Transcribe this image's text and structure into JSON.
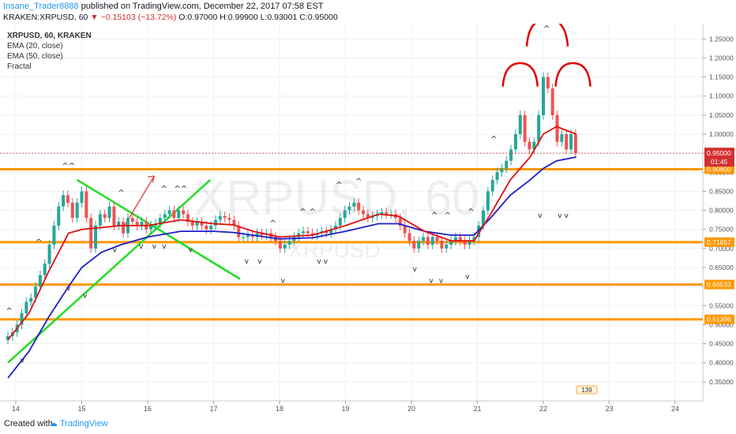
{
  "header": {
    "author": "Insane_Trader8888",
    "published": "published on TradingView.com, December 22, 2017 07:58 EST",
    "symbol": "KRAKEN:XRPUSD, 60",
    "change": "−0.15103 (−13.72%)",
    "ohlc": "O:0.97000 H:0.99900 L:0.93001 C:0.95000"
  },
  "legend": [
    "XRPUSD, 60, KRAKEN",
    "EMA (20, close)",
    "EMA (50, close)",
    "Fractal"
  ],
  "watermark": {
    "main": "XRPUSD, 60",
    "sub": "XRPUSD"
  },
  "price_tag": {
    "price": "0.95000",
    "countdown": "01:45",
    "color": "#d32f2f"
  },
  "levels": [
    {
      "value": 0.908,
      "label": "0.90800"
    },
    {
      "value": 0.71657,
      "label": "0.71657"
    },
    {
      "value": 0.60533,
      "label": "0.60533"
    },
    {
      "value": 0.51396,
      "label": "0.51396"
    }
  ],
  "badge": "139",
  "footer": {
    "created": "Created with",
    "brand": "TradingView"
  },
  "colors": {
    "up": "#26a69a",
    "down": "#ef5350",
    "ema20": "#e01010",
    "ema50": "#1e1ec8",
    "level": "#ff9800",
    "trend": "#22dd22"
  },
  "chart_data": {
    "type": "candlestick",
    "x_ticks": [
      {
        "label": "14",
        "day": 14
      },
      {
        "label": "15",
        "day": 15
      },
      {
        "label": "16",
        "day": 16
      },
      {
        "label": "17",
        "day": 17
      },
      {
        "label": "18",
        "day": 18
      },
      {
        "label": "19",
        "day": 19
      },
      {
        "label": "20",
        "day": 20
      },
      {
        "label": "21",
        "day": 21
      },
      {
        "label": "22",
        "day": 22
      },
      {
        "label": "23",
        "day": 23
      },
      {
        "label": "24",
        "day": 24
      }
    ],
    "y_ticks": [
      "0.35000",
      "0.40000",
      "0.45000",
      "0.50000",
      "0.55000",
      "0.60000",
      "0.65000",
      "0.70000",
      "0.75000",
      "0.80000",
      "0.85000",
      "0.90000",
      "0.95000",
      "1.00000",
      "1.05000",
      "1.10000",
      "1.15000",
      "1.20000",
      "1.25000"
    ],
    "ylim": [
      0.3,
      1.29
    ],
    "candles": [
      [
        13.88,
        0.47
      ],
      [
        13.95,
        0.48
      ],
      [
        14.02,
        0.5
      ],
      [
        14.09,
        0.53
      ],
      [
        14.16,
        0.56
      ],
      [
        14.23,
        0.57
      ],
      [
        14.3,
        0.6
      ],
      [
        14.37,
        0.63
      ],
      [
        14.44,
        0.66
      ],
      [
        14.51,
        0.71
      ],
      [
        14.58,
        0.76
      ],
      [
        14.65,
        0.81
      ],
      [
        14.72,
        0.84
      ],
      [
        14.79,
        0.82
      ],
      [
        14.86,
        0.78
      ],
      [
        14.93,
        0.82
      ],
      [
        15.0,
        0.85
      ],
      [
        15.07,
        0.78
      ],
      [
        15.14,
        0.7
      ],
      [
        15.21,
        0.76
      ],
      [
        15.28,
        0.79
      ],
      [
        15.35,
        0.78
      ],
      [
        15.42,
        0.81
      ],
      [
        15.49,
        0.76
      ],
      [
        15.56,
        0.77
      ],
      [
        15.63,
        0.74
      ],
      [
        15.7,
        0.78
      ],
      [
        15.77,
        0.77
      ],
      [
        15.84,
        0.76
      ],
      [
        15.91,
        0.77
      ],
      [
        15.98,
        0.75
      ],
      [
        16.05,
        0.76
      ],
      [
        16.12,
        0.765
      ],
      [
        16.19,
        0.78
      ],
      [
        16.26,
        0.79
      ],
      [
        16.33,
        0.8
      ],
      [
        16.4,
        0.78
      ],
      [
        16.47,
        0.8
      ],
      [
        16.54,
        0.79
      ],
      [
        16.61,
        0.77
      ],
      [
        16.68,
        0.76
      ],
      [
        16.75,
        0.77
      ],
      [
        16.82,
        0.76
      ],
      [
        16.89,
        0.75
      ],
      [
        16.96,
        0.76
      ],
      [
        17.03,
        0.775
      ],
      [
        17.1,
        0.785
      ],
      [
        17.17,
        0.78
      ],
      [
        17.24,
        0.775
      ],
      [
        17.31,
        0.76
      ],
      [
        17.38,
        0.73
      ],
      [
        17.45,
        0.73
      ],
      [
        17.52,
        0.735
      ],
      [
        17.59,
        0.73
      ],
      [
        17.66,
        0.74
      ],
      [
        17.73,
        0.735
      ],
      [
        17.8,
        0.74
      ],
      [
        17.87,
        0.73
      ],
      [
        17.94,
        0.72
      ],
      [
        18.01,
        0.7
      ],
      [
        18.08,
        0.71
      ],
      [
        18.15,
        0.72
      ],
      [
        18.22,
        0.73
      ],
      [
        18.29,
        0.74
      ],
      [
        18.36,
        0.745
      ],
      [
        18.43,
        0.74
      ],
      [
        18.5,
        0.735
      ],
      [
        18.57,
        0.74
      ],
      [
        18.64,
        0.745
      ],
      [
        18.71,
        0.74
      ],
      [
        18.78,
        0.75
      ],
      [
        18.85,
        0.76
      ],
      [
        18.92,
        0.78
      ],
      [
        18.99,
        0.8
      ],
      [
        19.06,
        0.81
      ],
      [
        19.13,
        0.82
      ],
      [
        19.2,
        0.8
      ],
      [
        19.27,
        0.79
      ],
      [
        19.34,
        0.78
      ],
      [
        19.41,
        0.785
      ],
      [
        19.48,
        0.79
      ],
      [
        19.55,
        0.795
      ],
      [
        19.62,
        0.79
      ],
      [
        19.69,
        0.79
      ],
      [
        19.76,
        0.78
      ],
      [
        19.83,
        0.76
      ],
      [
        19.9,
        0.74
      ],
      [
        19.97,
        0.72
      ],
      [
        20.04,
        0.7
      ],
      [
        20.11,
        0.72
      ],
      [
        20.18,
        0.73
      ],
      [
        20.25,
        0.71
      ],
      [
        20.32,
        0.73
      ],
      [
        20.39,
        0.72
      ],
      [
        20.46,
        0.7
      ],
      [
        20.53,
        0.71
      ],
      [
        20.6,
        0.72
      ],
      [
        20.67,
        0.73
      ],
      [
        20.74,
        0.72
      ],
      [
        20.81,
        0.71
      ],
      [
        20.88,
        0.72
      ],
      [
        20.95,
        0.73
      ],
      [
        21.02,
        0.76
      ],
      [
        21.09,
        0.8
      ],
      [
        21.16,
        0.85
      ],
      [
        21.23,
        0.88
      ],
      [
        21.3,
        0.9
      ],
      [
        21.37,
        0.91
      ],
      [
        21.44,
        0.93
      ],
      [
        21.51,
        0.96
      ],
      [
        21.58,
        1.0
      ],
      [
        21.65,
        1.05
      ],
      [
        21.72,
        0.98
      ],
      [
        21.79,
        0.96
      ],
      [
        21.86,
        0.98
      ],
      [
        21.93,
        1.05
      ],
      [
        22.0,
        1.15
      ],
      [
        22.07,
        1.12
      ],
      [
        22.14,
        1.05
      ],
      [
        22.21,
        0.98
      ],
      [
        22.28,
        1.0
      ],
      [
        22.35,
        0.96
      ],
      [
        22.42,
        1.0
      ],
      [
        22.49,
        0.95
      ]
    ],
    "ema20": [
      [
        13.88,
        0.46
      ],
      [
        14.2,
        0.53
      ],
      [
        14.5,
        0.64
      ],
      [
        14.8,
        0.74
      ],
      [
        15.0,
        0.75
      ],
      [
        15.3,
        0.755
      ],
      [
        15.6,
        0.76
      ],
      [
        16.0,
        0.76
      ],
      [
        16.5,
        0.775
      ],
      [
        17.0,
        0.765
      ],
      [
        17.3,
        0.762
      ],
      [
        17.6,
        0.745
      ],
      [
        18.0,
        0.73
      ],
      [
        18.5,
        0.735
      ],
      [
        19.0,
        0.76
      ],
      [
        19.5,
        0.79
      ],
      [
        19.8,
        0.785
      ],
      [
        20.2,
        0.745
      ],
      [
        20.6,
        0.72
      ],
      [
        20.95,
        0.72
      ],
      [
        21.2,
        0.79
      ],
      [
        21.5,
        0.88
      ],
      [
        21.8,
        0.94
      ],
      [
        22.0,
        1.0
      ],
      [
        22.2,
        1.02
      ],
      [
        22.5,
        1.0
      ]
    ],
    "ema50": [
      [
        13.88,
        0.36
      ],
      [
        14.2,
        0.43
      ],
      [
        14.5,
        0.52
      ],
      [
        14.8,
        0.6
      ],
      [
        15.0,
        0.65
      ],
      [
        15.3,
        0.69
      ],
      [
        15.6,
        0.71
      ],
      [
        16.0,
        0.73
      ],
      [
        16.5,
        0.745
      ],
      [
        17.0,
        0.745
      ],
      [
        17.3,
        0.742
      ],
      [
        17.6,
        0.735
      ],
      [
        18.0,
        0.725
      ],
      [
        18.5,
        0.728
      ],
      [
        19.0,
        0.745
      ],
      [
        19.5,
        0.765
      ],
      [
        19.8,
        0.765
      ],
      [
        20.2,
        0.745
      ],
      [
        20.6,
        0.735
      ],
      [
        20.95,
        0.735
      ],
      [
        21.2,
        0.78
      ],
      [
        21.5,
        0.84
      ],
      [
        21.8,
        0.88
      ],
      [
        22.0,
        0.91
      ],
      [
        22.2,
        0.93
      ],
      [
        22.5,
        0.94
      ]
    ],
    "fractals_up": [
      [
        13.9,
        0.53
      ],
      [
        14.35,
        0.71
      ],
      [
        14.75,
        0.91
      ],
      [
        14.85,
        0.91
      ],
      [
        15.6,
        0.84
      ],
      [
        16.25,
        0.85
      ],
      [
        16.45,
        0.85
      ],
      [
        16.55,
        0.85
      ],
      [
        17.9,
        0.76
      ],
      [
        18.35,
        0.79
      ],
      [
        18.5,
        0.79
      ],
      [
        18.9,
        0.86
      ],
      [
        19.2,
        0.87
      ],
      [
        20.35,
        0.78
      ],
      [
        20.55,
        0.78
      ],
      [
        20.9,
        0.79
      ],
      [
        21.25,
        0.98
      ],
      [
        22.05,
        1.27
      ]
    ],
    "fractals_down": [
      [
        14.1,
        0.4
      ],
      [
        14.8,
        0.59
      ],
      [
        15.05,
        0.57
      ],
      [
        15.5,
        0.69
      ],
      [
        15.9,
        0.7
      ],
      [
        16.1,
        0.7
      ],
      [
        16.25,
        0.7
      ],
      [
        16.65,
        0.69
      ],
      [
        17.5,
        0.66
      ],
      [
        17.7,
        0.66
      ],
      [
        18.05,
        0.61
      ],
      [
        18.6,
        0.66
      ],
      [
        18.7,
        0.66
      ],
      [
        20.05,
        0.64
      ],
      [
        20.3,
        0.61
      ],
      [
        20.45,
        0.61
      ],
      [
        20.85,
        0.62
      ],
      [
        21.95,
        0.78
      ],
      [
        22.25,
        0.78
      ],
      [
        22.35,
        0.78
      ]
    ]
  }
}
